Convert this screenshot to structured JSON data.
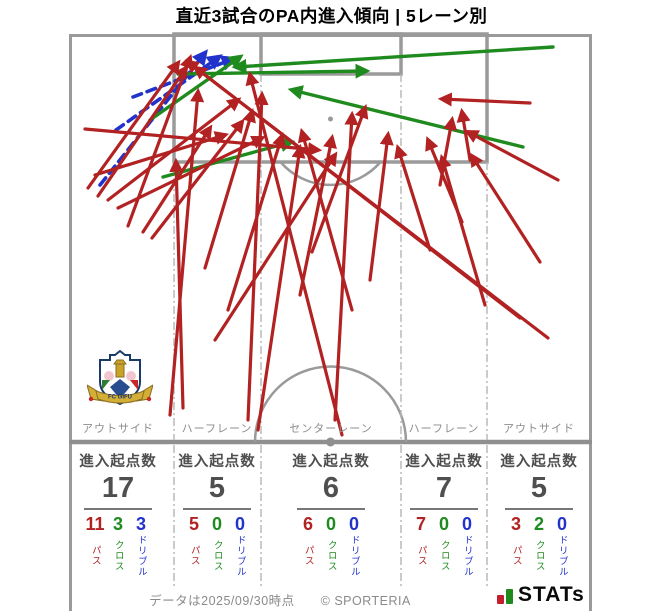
{
  "title": "直近3試合のPA内進入傾向 | 5レーン別",
  "pitch": {
    "lane_labels": [
      "アウトサイド",
      "ハーフレーン",
      "センターレーン",
      "ハーフレーン",
      "アウトサイド"
    ],
    "club_badge": "FC GIFU"
  },
  "stats": {
    "header_label": "進入起点数",
    "breakdown_labels": [
      "パス",
      "クロス",
      "ドリブル"
    ],
    "columns": [
      {
        "lane": "アウトサイド",
        "total": "17",
        "pass": "11",
        "cross": "3",
        "dribble": "3"
      },
      {
        "lane": "ハーフレーン",
        "total": "5",
        "pass": "5",
        "cross": "0",
        "dribble": "0"
      },
      {
        "lane": "センターレーン",
        "total": "6",
        "pass": "6",
        "cross": "0",
        "dribble": "0"
      },
      {
        "lane": "ハーフレーン",
        "total": "7",
        "pass": "7",
        "cross": "0",
        "dribble": "0"
      },
      {
        "lane": "アウトサイド",
        "total": "5",
        "pass": "3",
        "cross": "2",
        "dribble": "0"
      }
    ]
  },
  "footer": {
    "note": "データは2025/09/30時点",
    "copyright": "© SPORTERIA",
    "logo_text": "STATs"
  },
  "colors": {
    "pass": "#b22222",
    "cross": "#1f8b1f",
    "dribble": "#2233cc",
    "pitch_line": "#999999",
    "text_gray": "#4f4f4f",
    "label_gray": "#8c8c8c"
  },
  "chart_data": {
    "type": "table",
    "title": "直近3試合のPA内進入傾向 | 5レーン別",
    "columns": [
      "レーン",
      "進入起点数",
      "パス",
      "クロス",
      "ドリブル"
    ],
    "rows": [
      [
        "アウトサイド",
        17,
        11,
        3,
        3
      ],
      [
        "ハーフレーン",
        5,
        5,
        0,
        0
      ],
      [
        "センターレーン",
        6,
        6,
        0,
        0
      ],
      [
        "ハーフレーン",
        7,
        7,
        0,
        0
      ],
      [
        "アウトサイド",
        5,
        3,
        2,
        0
      ]
    ],
    "legend": {
      "パス": "#b22222",
      "クロス": "#1f8b1f",
      "ドリブル": "#2233cc (破線)"
    },
    "arrows": [
      {
        "kind": "dribble",
        "from": [
          100,
          185
        ],
        "to": [
          205,
          53
        ]
      },
      {
        "kind": "dribble",
        "from": [
          116,
          130
        ],
        "to": [
          219,
          57
        ]
      },
      {
        "kind": "dribble",
        "from": [
          133,
          97
        ],
        "to": [
          233,
          59
        ]
      },
      {
        "kind": "cross",
        "from": [
          178,
          74
        ],
        "to": [
          366,
          71
        ]
      },
      {
        "kind": "cross",
        "from": [
          553,
          47
        ],
        "to": [
          236,
          67
        ]
      },
      {
        "kind": "cross",
        "from": [
          523,
          147
        ],
        "to": [
          292,
          90
        ]
      },
      {
        "kind": "cross",
        "from": [
          163,
          177
        ],
        "to": [
          291,
          142
        ]
      },
      {
        "kind": "cross",
        "from": [
          150,
          120
        ],
        "to": [
          240,
          57
        ]
      },
      {
        "kind": "pass",
        "from": [
          88,
          188
        ],
        "to": [
          178,
          63
        ]
      },
      {
        "kind": "pass",
        "from": [
          98,
          196
        ],
        "to": [
          186,
          68
        ]
      },
      {
        "kind": "pass",
        "from": [
          85,
          129
        ],
        "to": [
          318,
          150
        ]
      },
      {
        "kind": "pass",
        "from": [
          128,
          226
        ],
        "to": [
          190,
          58
        ]
      },
      {
        "kind": "pass",
        "from": [
          170,
          415
        ],
        "to": [
          198,
          92
        ]
      },
      {
        "kind": "pass",
        "from": [
          183,
          408
        ],
        "to": [
          176,
          162
        ]
      },
      {
        "kind": "pass",
        "from": [
          152,
          238
        ],
        "to": [
          242,
          122
        ]
      },
      {
        "kind": "pass",
        "from": [
          118,
          208
        ],
        "to": [
          262,
          138
        ]
      },
      {
        "kind": "pass",
        "from": [
          108,
          200
        ],
        "to": [
          238,
          100
        ]
      },
      {
        "kind": "pass",
        "from": [
          143,
          232
        ],
        "to": [
          210,
          128
        ]
      },
      {
        "kind": "pass",
        "from": [
          95,
          175
        ],
        "to": [
          225,
          135
        ]
      },
      {
        "kind": "pass",
        "from": [
          205,
          268
        ],
        "to": [
          252,
          112
        ]
      },
      {
        "kind": "pass",
        "from": [
          228,
          310
        ],
        "to": [
          282,
          136
        ]
      },
      {
        "kind": "pass",
        "from": [
          248,
          420
        ],
        "to": [
          262,
          95
        ]
      },
      {
        "kind": "pass",
        "from": [
          258,
          430
        ],
        "to": [
          300,
          148
        ]
      },
      {
        "kind": "pass",
        "from": [
          215,
          340
        ],
        "to": [
          335,
          155
        ]
      },
      {
        "kind": "pass",
        "from": [
          300,
          295
        ],
        "to": [
          332,
          138
        ]
      },
      {
        "kind": "pass",
        "from": [
          335,
          420
        ],
        "to": [
          352,
          115
        ]
      },
      {
        "kind": "pass",
        "from": [
          312,
          252
        ],
        "to": [
          365,
          108
        ]
      },
      {
        "kind": "pass",
        "from": [
          352,
          310
        ],
        "to": [
          302,
          132
        ]
      },
      {
        "kind": "pass",
        "from": [
          342,
          435
        ],
        "to": [
          250,
          75
        ]
      },
      {
        "kind": "pass",
        "from": [
          370,
          280
        ],
        "to": [
          388,
          135
        ]
      },
      {
        "kind": "pass",
        "from": [
          548,
          338
        ],
        "to": [
          188,
          62
        ]
      },
      {
        "kind": "pass",
        "from": [
          520,
          318
        ],
        "to": [
          196,
          68
        ]
      },
      {
        "kind": "pass",
        "from": [
          462,
          222
        ],
        "to": [
          428,
          140
        ]
      },
      {
        "kind": "pass",
        "from": [
          470,
          160
        ],
        "to": [
          462,
          112
        ]
      },
      {
        "kind": "pass",
        "from": [
          440,
          185
        ],
        "to": [
          452,
          120
        ]
      },
      {
        "kind": "pass",
        "from": [
          430,
          250
        ],
        "to": [
          398,
          148
        ]
      },
      {
        "kind": "pass",
        "from": [
          485,
          305
        ],
        "to": [
          442,
          158
        ]
      },
      {
        "kind": "pass",
        "from": [
          530,
          103
        ],
        "to": [
          442,
          99
        ]
      },
      {
        "kind": "pass",
        "from": [
          558,
          180
        ],
        "to": [
          468,
          132
        ]
      },
      {
        "kind": "pass",
        "from": [
          540,
          262
        ],
        "to": [
          472,
          156
        ]
      }
    ]
  }
}
